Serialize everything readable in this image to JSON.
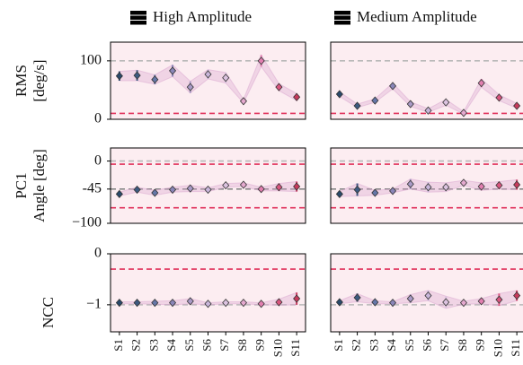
{
  "chart_data": {
    "type": "errorbar_grid",
    "categories": [
      "S1",
      "S2",
      "S3",
      "S4",
      "S5",
      "S6",
      "S7",
      "S8",
      "S9",
      "S10",
      "S11"
    ],
    "colors": [
      "#2a4a6b",
      "#3d5a80",
      "#6577a8",
      "#8a86b8",
      "#a99ac6",
      "#c9b6db",
      "#dcc3e0",
      "#e5a9cf",
      "#e27fb0",
      "#d9567f",
      "#c73a5d"
    ],
    "legend_color": "#000000",
    "band_color": "#d9a6cf",
    "columns": [
      {
        "title": "High Amplitude",
        "panels": [
          {
            "values": [
              74,
              75,
              68,
              83,
              55,
              77,
              71,
              31,
              100,
              55,
              38
            ],
            "errors": [
              8,
              9,
              8,
              10,
              10,
              8,
              9,
              3,
              10,
              6,
              6
            ]
          },
          {
            "values": [
              -53,
              -46,
              -51,
              -46,
              -44,
              -46,
              -39,
              -38,
              -45,
              -42,
              -41
            ],
            "errors": [
              3,
              4,
              4,
              4,
              5,
              3,
              3,
              3,
              3,
              6,
              8
            ]
          },
          {
            "values": [
              -0.96,
              -0.96,
              -0.96,
              -0.96,
              -0.93,
              -0.98,
              -0.96,
              -0.96,
              -0.98,
              -0.95,
              -0.88
            ],
            "errors": [
              0.02,
              0.02,
              0.03,
              0.04,
              0.05,
              0.02,
              0.02,
              0.02,
              0.02,
              0.06,
              0.12
            ]
          }
        ]
      },
      {
        "title": "Medium Amplitude",
        "panels": [
          {
            "values": [
              43,
              23,
              32,
              57,
              26,
              15,
              29,
              11,
              62,
              37,
              23
            ],
            "errors": [
              4,
              3,
              3,
              5,
              4,
              3,
              5,
              2,
              7,
              5,
              4
            ]
          },
          {
            "values": [
              -53,
              -46,
              -51,
              -48,
              -37,
              -42,
              -42,
              -35,
              -41,
              -39,
              -38
            ],
            "errors": [
              4,
              10,
              4,
              3,
              8,
              8,
              7,
              4,
              6,
              6,
              8
            ]
          },
          {
            "values": [
              -0.95,
              -0.86,
              -0.95,
              -0.96,
              -0.88,
              -0.82,
              -0.95,
              -0.96,
              -0.93,
              -0.9,
              -0.82
            ],
            "errors": [
              0.03,
              0.08,
              0.03,
              0.02,
              0.08,
              0.1,
              0.12,
              0.03,
              0.05,
              0.12,
              0.1
            ]
          }
        ]
      }
    ],
    "rows": [
      {
        "ylabel": [
          "RMS",
          "[deg/s]"
        ],
        "ylim": [
          0,
          132
        ],
        "yticks": [
          0,
          100
        ],
        "hlines": [
          {
            "value": 100,
            "color": "#b8b8b8"
          },
          {
            "value": 10,
            "color": "#e0305a"
          }
        ]
      },
      {
        "ylabel": [
          "PC1",
          "Angle [deg]"
        ],
        "ylim": [
          -100,
          21
        ],
        "yticks": [
          {
            "value": -100,
            "label": "−100"
          },
          {
            "value": -45,
            "label": "-45"
          },
          0
        ],
        "hlines": [
          {
            "value": 0,
            "color": "#b8b8b8"
          },
          {
            "value": -45,
            "color": "#888888"
          },
          {
            "value": -5,
            "color": "#e0305a"
          },
          {
            "value": -75,
            "color": "#e0305a"
          }
        ]
      },
      {
        "ylabel": [
          "NCC"
        ],
        "ylim": [
          -1.53,
          0
        ],
        "yticks": [
          {
            "value": -1,
            "label": "−1"
          },
          0
        ],
        "hlines": [
          {
            "value": -1,
            "color": "#b8b8b8"
          },
          {
            "value": -0.3,
            "color": "#e0305a"
          }
        ]
      }
    ]
  }
}
